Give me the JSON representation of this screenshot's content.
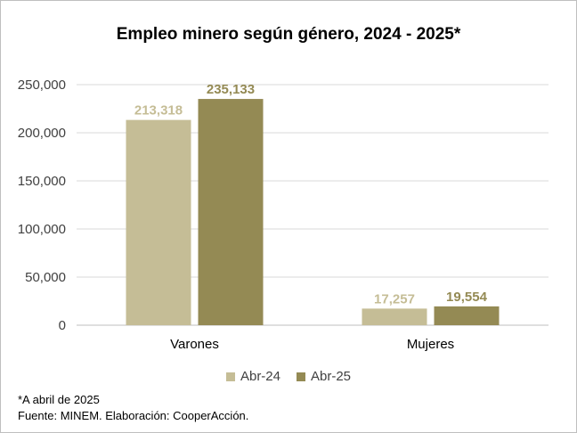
{
  "chart_data": {
    "type": "bar",
    "title": "Empleo minero según género, 2024 - 2025*",
    "categories": [
      "Varones",
      "Mujeres"
    ],
    "series": [
      {
        "name": "Abr-24",
        "values": [
          213318,
          17257
        ],
        "labels": [
          "213,318",
          "17,257"
        ],
        "color": "#c5bd96"
      },
      {
        "name": "Abr-25",
        "values": [
          235133,
          19554
        ],
        "labels": [
          "235,133",
          "19,554"
        ],
        "color": "#948a54"
      }
    ],
    "yticks": [
      "0",
      "50,000",
      "100,000",
      "150,000",
      "200,000",
      "250,000"
    ],
    "ylim": [
      0,
      250000
    ],
    "grid": true,
    "legend_position": "bottom"
  },
  "notes": {
    "footnote": "*A abril de 2025",
    "source": "Fuente: MINEM. Elaboración: CooperAcción."
  }
}
